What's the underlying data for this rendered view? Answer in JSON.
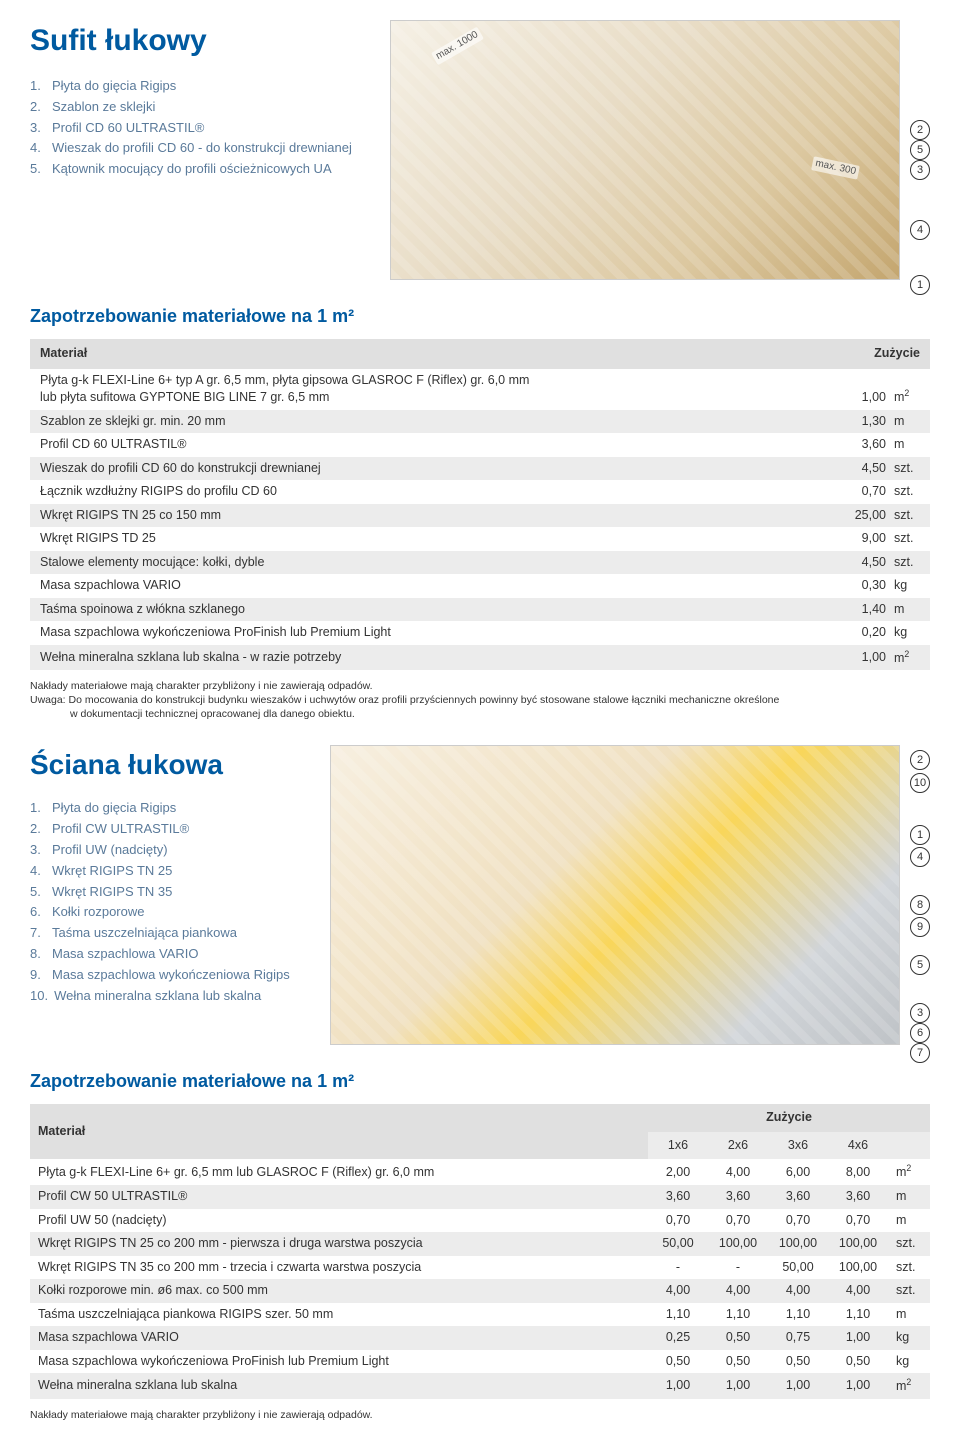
{
  "colors": {
    "brand": "#005aa0",
    "legend_text": "#5a7a9a",
    "row_alt": "#ececec",
    "header_bg": "#e0e0e0"
  },
  "section1": {
    "title": "Sufit łukowy",
    "legend": [
      "Płyta do gięcia Rigips",
      "Szablon ze sklejki",
      "Profil CD 60 ULTRASTIL®",
      "Wieszak do profili CD 60 - do konstrukcji drewnianej",
      "Kątownik mocujący do profili ościeżnicowych UA"
    ],
    "diagram_labels": {
      "a": "max. 1000",
      "b": "max. 300"
    },
    "callouts": [
      "2",
      "5",
      "3",
      "4",
      "1"
    ]
  },
  "table1": {
    "subheader": "Zapotrzebowanie materiałowe na 1 m²",
    "col_material": "Materiał",
    "col_usage": "Zużycie",
    "first_row_line1": "Płyta g-k FLEXI-Line 6+ typ A gr. 6,5 mm, płyta gipsowa GLASROC F (Riflex) gr. 6,0 mm",
    "first_row_line2": "lub płyta sufitowa GYPTONE BIG LINE 7 gr. 6,5 mm",
    "first_row_val": "1,00",
    "first_row_unit": "m²",
    "rows": [
      {
        "name": "Szablon ze sklejki gr. min. 20 mm",
        "val": "1,30",
        "unit": "m"
      },
      {
        "name": "Profil CD 60 ULTRASTIL®",
        "val": "3,60",
        "unit": "m"
      },
      {
        "name": "Wieszak do profili CD 60 do konstrukcji drewnianej",
        "val": "4,50",
        "unit": "szt."
      },
      {
        "name": "Łącznik wzdłużny RIGIPS do profilu CD 60",
        "val": "0,70",
        "unit": "szt."
      },
      {
        "name": "Wkręt RIGIPS TN 25 co 150 mm",
        "val": "25,00",
        "unit": "szt."
      },
      {
        "name": "Wkręt RIGIPS TD 25",
        "val": "9,00",
        "unit": "szt."
      },
      {
        "name": "Stalowe elementy mocujące: kołki, dyble",
        "val": "4,50",
        "unit": "szt."
      },
      {
        "name": "Masa szpachlowa VARIO",
        "val": "0,30",
        "unit": "kg"
      },
      {
        "name": "Taśma spoinowa z włókna szklanego",
        "val": "1,40",
        "unit": "m"
      },
      {
        "name": "Masa szpachlowa wykończeniowa ProFinish lub Premium Light",
        "val": "0,20",
        "unit": "kg"
      },
      {
        "name": "Wełna mineralna szklana lub skalna - w razie potrzeby",
        "val": "1,00",
        "unit": "m²"
      }
    ],
    "note1": "Nakłady materiałowe mają charakter przybliżony i nie zawierają odpadów.",
    "note2a": "Uwaga: Do mocowania do konstrukcji budynku wieszaków i uchwytów oraz profili przyściennych powinny być stosowane stalowe łączniki mechaniczne określone",
    "note2b": "w dokumentacji technicznej opracowanej dla danego obiektu."
  },
  "section2": {
    "title": "Ściana łukowa",
    "legend": [
      "Płyta do gięcia Rigips",
      "Profil CW ULTRASTIL®",
      "Profil UW (nadcięty)",
      "Wkręt RIGIPS TN 25",
      "Wkręt RIGIPS TN 35",
      "Kołki rozporowe",
      "Taśma uszczelniająca piankowa",
      "Masa szpachlowa VARIO",
      "Masa szpachlowa wykończeniowa Rigips",
      "Wełna mineralna szklana lub skalna"
    ],
    "callouts": [
      "2",
      "10",
      "1",
      "4",
      "8",
      "9",
      "5",
      "3",
      "6",
      "7"
    ]
  },
  "table2": {
    "subheader": "Zapotrzebowanie materiałowe na 1 m²",
    "col_material": "Materiał",
    "col_usage": "Zużycie",
    "sub_cols": [
      "1x6",
      "2x6",
      "3x6",
      "4x6",
      ""
    ],
    "rows": [
      {
        "name": "Płyta g-k FLEXI-Line 6+ gr. 6,5 mm lub GLASROC F (Riflex) gr. 6,0 mm",
        "v": [
          "2,00",
          "4,00",
          "6,00",
          "8,00"
        ],
        "unit": "m²"
      },
      {
        "name": "Profil CW 50 ULTRASTIL®",
        "v": [
          "3,60",
          "3,60",
          "3,60",
          "3,60"
        ],
        "unit": "m"
      },
      {
        "name": "Profil UW 50 (nadcięty)",
        "v": [
          "0,70",
          "0,70",
          "0,70",
          "0,70"
        ],
        "unit": "m"
      },
      {
        "name": "Wkręt RIGIPS TN 25 co 200 mm - pierwsza i druga warstwa poszycia",
        "v": [
          "50,00",
          "100,00",
          "100,00",
          "100,00"
        ],
        "unit": "szt."
      },
      {
        "name": "Wkręt RIGIPS TN 35 co 200 mm - trzecia i czwarta warstwa poszycia",
        "v": [
          "-",
          "-",
          "50,00",
          "100,00"
        ],
        "unit": "szt."
      },
      {
        "name": "Kołki rozporowe min. ø6 max. co 500 mm",
        "v": [
          "4,00",
          "4,00",
          "4,00",
          "4,00"
        ],
        "unit": "szt."
      },
      {
        "name": "Taśma uszczelniająca piankowa RIGIPS szer. 50 mm",
        "v": [
          "1,10",
          "1,10",
          "1,10",
          "1,10"
        ],
        "unit": "m"
      },
      {
        "name": "Masa szpachlowa VARIO",
        "v": [
          "0,25",
          "0,50",
          "0,75",
          "1,00"
        ],
        "unit": "kg"
      },
      {
        "name": "Masa szpachlowa wykończeniowa ProFinish lub Premium Light",
        "v": [
          "0,50",
          "0,50",
          "0,50",
          "0,50"
        ],
        "unit": "kg"
      },
      {
        "name": "Wełna mineralna szklana lub skalna",
        "v": [
          "1,00",
          "1,00",
          "1,00",
          "1,00"
        ],
        "unit": "m²"
      }
    ],
    "note": "Nakłady materiałowe mają charakter przybliżony i nie zawierają odpadów."
  }
}
